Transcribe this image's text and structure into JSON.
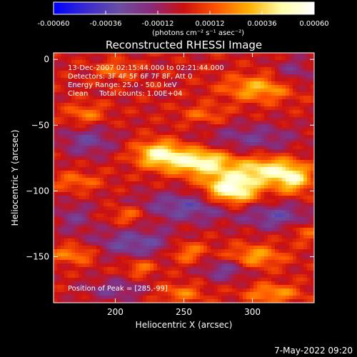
{
  "chart_data": {
    "type": "heatmap",
    "title": "Reconstructed RHESSI Image",
    "xlabel": "Heliocentric X (arcsec)",
    "ylabel": "Heliocentric Y (arcsec)",
    "xlim": [
      155,
      345
    ],
    "ylim": [
      -185,
      5
    ],
    "x_ticks": [
      200,
      250,
      300
    ],
    "y_ticks": [
      0,
      -50,
      -100,
      -150
    ],
    "colorbar": {
      "range": [
        -0.0006,
        0.0006
      ],
      "tick_labels": [
        "-0.00060",
        "-0.00036",
        "-0.00012",
        "0.00012",
        "0.00036",
        "0.00060"
      ],
      "unit_label": "(photons cm⁻² s⁻¹ asec⁻²)",
      "colormap": [
        "#0000ff",
        "#3a2bd0",
        "#6a4ea3",
        "#8a2a7a",
        "#cc1010",
        "#ff5500",
        "#ffb000",
        "#ffffaa",
        "#ffffff"
      ]
    },
    "peak": [
      285,
      -99
    ],
    "sources": [
      {
        "x": 285,
        "y": -99,
        "amp": 0.0006,
        "sx": 14,
        "sy": 9
      },
      {
        "x": 262,
        "y": -78,
        "amp": 0.0005,
        "sx": 16,
        "sy": 7
      },
      {
        "x": 232,
        "y": -72,
        "amp": 0.00045,
        "sx": 12,
        "sy": 7
      },
      {
        "x": 312,
        "y": -84,
        "amp": 0.00042,
        "sx": 16,
        "sy": 7
      },
      {
        "x": 330,
        "y": -92,
        "amp": 0.00036,
        "sx": 9,
        "sy": 7
      },
      {
        "x": 305,
        "y": -22,
        "amp": 0.0003,
        "sx": 18,
        "sy": 7
      },
      {
        "x": 178,
        "y": -42,
        "amp": 0.0002,
        "sx": 10,
        "sy": 6
      },
      {
        "x": 172,
        "y": -93,
        "amp": 0.00018,
        "sx": 12,
        "sy": 5
      },
      {
        "x": 210,
        "y": -118,
        "amp": 0.00022,
        "sx": 10,
        "sy": 5
      },
      {
        "x": 170,
        "y": -148,
        "amp": 0.00024,
        "sx": 12,
        "sy": 5
      },
      {
        "x": 218,
        "y": -158,
        "amp": 0.0002,
        "sx": 8,
        "sy": 5
      },
      {
        "x": 252,
        "y": -146,
        "amp": 0.00024,
        "sx": 10,
        "sy": 6
      },
      {
        "x": 302,
        "y": -150,
        "amp": 0.00028,
        "sx": 14,
        "sy": 6
      },
      {
        "x": 315,
        "y": -178,
        "amp": 0.00026,
        "sx": 14,
        "sy": 5
      },
      {
        "x": 248,
        "y": -178,
        "amp": 0.0002,
        "sx": 12,
        "sy": 5
      },
      {
        "x": 338,
        "y": -130,
        "amp": 0.00018,
        "sx": 8,
        "sy": 6
      },
      {
        "x": 200,
        "y": -8,
        "amp": 0.00018,
        "sx": 10,
        "sy": 5
      },
      {
        "x": 265,
        "y": -42,
        "amp": 0.00016,
        "sx": 12,
        "sy": 5
      },
      {
        "x": 255,
        "y": -112,
        "amp": -0.0003,
        "sx": 28,
        "sy": 8
      },
      {
        "x": 215,
        "y": -140,
        "amp": -0.00028,
        "sx": 22,
        "sy": 8
      },
      {
        "x": 180,
        "y": -62,
        "amp": -0.00024,
        "sx": 14,
        "sy": 8
      },
      {
        "x": 320,
        "y": -120,
        "amp": -0.00026,
        "sx": 18,
        "sy": 7
      },
      {
        "x": 300,
        "y": -60,
        "amp": -0.0002,
        "sx": 24,
        "sy": 8
      },
      {
        "x": 200,
        "y": -175,
        "amp": -0.0002,
        "sx": 16,
        "sy": 6
      },
      {
        "x": 280,
        "y": -160,
        "amp": -0.00024,
        "sx": 12,
        "sy": 6
      },
      {
        "x": 330,
        "y": -10,
        "amp": -0.00018,
        "sx": 10,
        "sy": 8
      },
      {
        "x": 170,
        "y": -120,
        "amp": -0.00018,
        "sx": 10,
        "sy": 8
      }
    ],
    "annotations": [
      "13-Dec-2007 02:15:44.000 to 02:21:44.000",
      "Detectors: 3F 4F 5F 6F 7F 8F, Att 0",
      "Energy Range: 25.0 - 50.0 keV",
      "Clean     Total counts: 1.00E+04"
    ],
    "peak_label": "Position of Peak = [285,-99]",
    "timestamp": "7-May-2022 09:20"
  }
}
